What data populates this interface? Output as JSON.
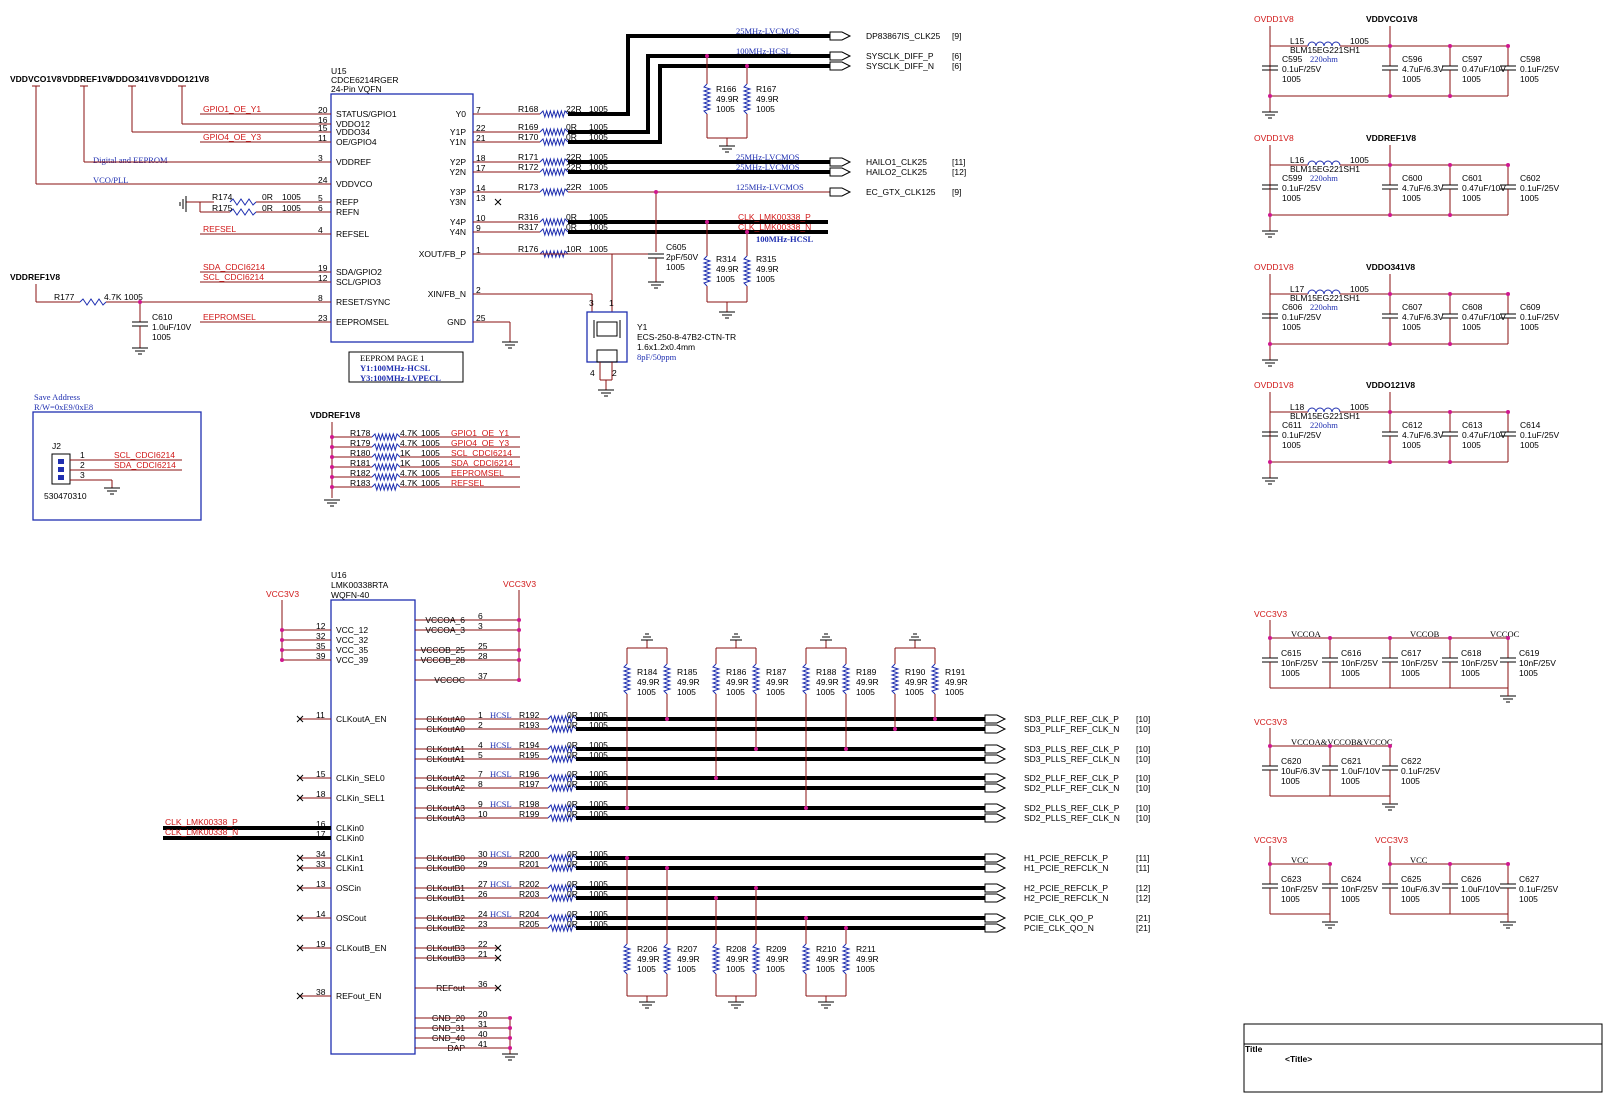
{
  "u15": {
    "ref": "U15",
    "part": "CDCE6214RGER",
    "package": "24-Pin VQFN",
    "left_pins": [
      {
        "num": "20",
        "name": "STATUS/GPIO1",
        "net": "GPIO1_OE_Y1"
      },
      {
        "num": "16",
        "name": "VDDO12",
        "net": ""
      },
      {
        "num": "15",
        "name": "VDDO34",
        "net": ""
      },
      {
        "num": "11",
        "name": "OE/GPIO4",
        "net": "GPIO4_OE_Y3"
      },
      {
        "num": "3",
        "name": "VDDREF",
        "net": "Digital and EEPROM"
      },
      {
        "num": "24",
        "name": "VDDVCO",
        "net": "VCO/PLL"
      },
      {
        "num": "5",
        "name": "REFP",
        "net": ""
      },
      {
        "num": "6",
        "name": "REFN",
        "net": ""
      },
      {
        "num": "4",
        "name": "REFSEL",
        "net": "REFSEL"
      },
      {
        "num": "19",
        "name": "SDA/GPIO2",
        "net": "SDA_CDCI6214"
      },
      {
        "num": "12",
        "name": "SCL/GPIO3",
        "net": "SCL_CDCI6214"
      },
      {
        "num": "8",
        "name": "RESET/SYNC",
        "net": ""
      },
      {
        "num": "23",
        "name": "EEPROMSEL",
        "net": "EEPROMSEL"
      }
    ],
    "right_pins": [
      {
        "num": "7",
        "name": "Y0"
      },
      {
        "num": "22",
        "name": "Y1P"
      },
      {
        "num": "21",
        "name": "Y1N"
      },
      {
        "num": "18",
        "name": "Y2P"
      },
      {
        "num": "17",
        "name": "Y2N"
      },
      {
        "num": "14",
        "name": "Y3P"
      },
      {
        "num": "13",
        "name": "Y3N"
      },
      {
        "num": "10",
        "name": "Y4P"
      },
      {
        "num": "9",
        "name": "Y4N"
      },
      {
        "num": "1",
        "name": "XOUT/FB_P"
      },
      {
        "num": "2",
        "name": "XIN/FB_N"
      },
      {
        "num": "25",
        "name": "GND"
      }
    ],
    "supplies": [
      "VDDVCO1V8",
      "VDDREF1V8",
      "VDDO341V8",
      "VDDO121V8"
    ],
    "ref_resistors": [
      {
        "ref": "R174",
        "val": "0R",
        "pkg": "1005"
      },
      {
        "ref": "R175",
        "val": "0R",
        "pkg": "1005"
      }
    ],
    "out_resistors": [
      {
        "ref": "R168",
        "val": "22R",
        "pkg": "1005"
      },
      {
        "ref": "R169",
        "val": "0R",
        "pkg": "1005"
      },
      {
        "ref": "R170",
        "val": "0R",
        "pkg": "1005"
      },
      {
        "ref": "R171",
        "val": "22R",
        "pkg": "1005"
      },
      {
        "ref": "R172",
        "val": "22R",
        "pkg": "1005"
      },
      {
        "ref": "R173",
        "val": "22R",
        "pkg": "1005"
      },
      {
        "ref": "R316",
        "val": "0R",
        "pkg": "1005"
      },
      {
        "ref": "R317",
        "val": "0R",
        "pkg": "1005"
      },
      {
        "ref": "R176",
        "val": "10R",
        "pkg": "1005"
      }
    ],
    "outputs": [
      {
        "name": "DP83867IS_CLK25",
        "sheet": "[9]",
        "std": "25MHz-LVCMOS"
      },
      {
        "name": "SYSCLK_DIFF_P",
        "sheet": "[6]",
        "std": "100MHz-HCSL"
      },
      {
        "name": "SYSCLK_DIFF_N",
        "sheet": "[6]",
        "std": ""
      },
      {
        "name": "HAILO1_CLK25",
        "sheet": "[11]",
        "std": "25MHz-LVCMOS"
      },
      {
        "name": "HAILO2_CLK25",
        "sheet": "[12]",
        "std": "25MHz-LVCMOS"
      },
      {
        "name": "EC_GTX_CLK125",
        "sheet": "[9]",
        "std": "125MHz-LVCMOS"
      }
    ],
    "lmk_nets": [
      "CLK_LMK00338_P",
      "CLK_LMK00338_N",
      "100MHz-HCSL"
    ],
    "terms": [
      {
        "ref": "R166",
        "val": "49.9R",
        "pkg": "1005"
      },
      {
        "ref": "R167",
        "val": "49.9R",
        "pkg": "1005"
      },
      {
        "ref": "R314",
        "val": "49.9R",
        "pkg": "1005"
      },
      {
        "ref": "R315",
        "val": "49.9R",
        "pkg": "1005"
      }
    ],
    "c605": {
      "ref": "C605",
      "val": "2pF/50V",
      "pkg": "1005"
    },
    "reset": {
      "supply": "VDDREF1V8",
      "r": "R177",
      "rval": "4.7K",
      "rpkg": "1005",
      "c": "C610",
      "cval": "1.0uF/10V",
      "cpkg": "1005"
    },
    "crystal": {
      "ref": "Y1",
      "part": "ECS-250-8-47B2-CTN-TR",
      "size": "1.6x1.2x0.4mm",
      "load": "8pF/50ppm",
      "pins": [
        "3",
        "1",
        "4",
        "2"
      ]
    },
    "eeprom_note": [
      "EEPROM PAGE 1",
      "Y1:100MHz-HCSL",
      "Y3:100MHz-LVPECL"
    ]
  },
  "pullups": {
    "supply": "VDDREF1V8",
    "rows": [
      {
        "ref": "R178",
        "val": "4.7K",
        "pkg": "1005",
        "net": "GPIO1_OE_Y1"
      },
      {
        "ref": "R179",
        "val": "4.7K",
        "pkg": "1005",
        "net": "GPIO4_OE_Y3"
      },
      {
        "ref": "R180",
        "val": "1K",
        "pkg": "1005",
        "net": "SCL_CDCI6214"
      },
      {
        "ref": "R181",
        "val": "1K",
        "pkg": "1005",
        "net": "SDA_CDCI6214"
      },
      {
        "ref": "R182",
        "val": "4.7K",
        "pkg": "1005",
        "net": "EEPROMSEL"
      },
      {
        "ref": "R183",
        "val": "4.7K",
        "pkg": "1005",
        "net": "REFSEL"
      }
    ]
  },
  "j2": {
    "note1": "Save Address",
    "note2": "R/W=0xE9/0xE8",
    "ref": "J2",
    "part": "530470310",
    "pins": [
      {
        "num": "1",
        "net": "SCL_CDCI6214"
      },
      {
        "num": "2",
        "net": "SDA_CDCI6214"
      },
      {
        "num": "3",
        "net": ""
      }
    ]
  },
  "u16": {
    "ref": "U16",
    "part": "LMK00338RTA",
    "package": "WQFN-40",
    "supply": "VCC3V3",
    "vcc_pins": [
      {
        "num": "12",
        "name": "VCC_12"
      },
      {
        "num": "32",
        "name": "VCC_32"
      },
      {
        "num": "35",
        "name": "VCC_35"
      },
      {
        "num": "39",
        "name": "VCC_39"
      }
    ],
    "left_pins": [
      {
        "num": "11",
        "name": "CLKoutA_EN"
      },
      {
        "num": "15",
        "name": "CLKin_SEL0"
      },
      {
        "num": "18",
        "name": "CLKin_SEL1"
      },
      {
        "num": "16",
        "name": "CLKin0"
      },
      {
        "num": "17",
        "name": "CLKin0"
      },
      {
        "num": "34",
        "name": "CLKin1"
      },
      {
        "num": "33",
        "name": "CLKin1"
      },
      {
        "num": "13",
        "name": "OSCin"
      },
      {
        "num": "14",
        "name": "OSCout"
      },
      {
        "num": "19",
        "name": "CLKoutB_EN"
      },
      {
        "num": "38",
        "name": "REFout_EN"
      }
    ],
    "right_supply_pins": [
      {
        "num": "6",
        "name": "VCCOA_6"
      },
      {
        "num": "3",
        "name": "VCCOA_3"
      },
      {
        "num": "25",
        "name": "VCCOB_25"
      },
      {
        "num": "28",
        "name": "VCCOB_28"
      },
      {
        "num": "37",
        "name": "VCCOC"
      }
    ],
    "right_pins": [
      {
        "num": "1",
        "name": "CLKoutA0"
      },
      {
        "num": "2",
        "name": "CLKoutA0"
      },
      {
        "num": "4",
        "name": "CLKoutA1"
      },
      {
        "num": "5",
        "name": "CLKoutA1"
      },
      {
        "num": "7",
        "name": "CLKoutA2"
      },
      {
        "num": "8",
        "name": "CLKoutA2"
      },
      {
        "num": "9",
        "name": "CLKoutA3"
      },
      {
        "num": "10",
        "name": "CLKoutA3"
      },
      {
        "num": "30",
        "name": "CLKoutB0"
      },
      {
        "num": "29",
        "name": "CLKoutB0"
      },
      {
        "num": "27",
        "name": "CLKoutB1"
      },
      {
        "num": "26",
        "name": "CLKoutB1"
      },
      {
        "num": "24",
        "name": "CLKoutB2"
      },
      {
        "num": "23",
        "name": "CLKoutB2"
      },
      {
        "num": "22",
        "name": "CLKoutB3"
      },
      {
        "num": "21",
        "name": "CLKoutB3"
      },
      {
        "num": "36",
        "name": "REFout"
      },
      {
        "num": "20",
        "name": "GND_20"
      },
      {
        "num": "31",
        "name": "GND_31"
      },
      {
        "num": "40",
        "name": "GND_40"
      },
      {
        "num": "41",
        "name": "DAP"
      }
    ],
    "in_nets": [
      "CLK_LMK00338_P",
      "CLK_LMK00338_N"
    ],
    "series": [
      {
        "ref": "R192",
        "val": "0R"
      },
      {
        "ref": "R193",
        "val": "0R"
      },
      {
        "ref": "R194",
        "val": "0R"
      },
      {
        "ref": "R195",
        "val": "0R"
      },
      {
        "ref": "R196",
        "val": "0R"
      },
      {
        "ref": "R197",
        "val": "0R"
      },
      {
        "ref": "R198",
        "val": "0R"
      },
      {
        "ref": "R199",
        "val": "0R"
      },
      {
        "ref": "R200",
        "val": "0R"
      },
      {
        "ref": "R201",
        "val": "0R"
      },
      {
        "ref": "R202",
        "val": "0R"
      },
      {
        "ref": "R203",
        "val": "0R"
      },
      {
        "ref": "R204",
        "val": "0R"
      },
      {
        "ref": "R205",
        "val": "0R"
      }
    ],
    "series_pkg": "1005",
    "hcsl": "HCSL",
    "outputs": [
      {
        "name": "SD3_PLLF_REF_CLK_P",
        "sheet": "[10]"
      },
      {
        "name": "SD3_PLLF_REF_CLK_N",
        "sheet": "[10]"
      },
      {
        "name": "SD3_PLLS_REF_CLK_P",
        "sheet": "[10]"
      },
      {
        "name": "SD3_PLLS_REF_CLK_N",
        "sheet": "[10]"
      },
      {
        "name": "SD2_PLLF_REF_CLK_P",
        "sheet": "[10]"
      },
      {
        "name": "SD2_PLLF_REF_CLK_N",
        "sheet": "[10]"
      },
      {
        "name": "SD2_PLLS_REF_CLK_P",
        "sheet": "[10]"
      },
      {
        "name": "SD2_PLLS_REF_CLK_N",
        "sheet": "[10]"
      },
      {
        "name": "H1_PCIE_REFCLK_P",
        "sheet": "[11]"
      },
      {
        "name": "H1_PCIE_REFCLK_N",
        "sheet": "[11]"
      },
      {
        "name": "H2_PCIE_REFCLK_P",
        "sheet": "[12]"
      },
      {
        "name": "H2_PCIE_REFCLK_N",
        "sheet": "[12]"
      },
      {
        "name": "PCIE_CLK_QO_P",
        "sheet": "[21]"
      },
      {
        "name": "PCIE_CLK_QO_N",
        "sheet": "[21]"
      }
    ],
    "top_terms": [
      "R184",
      "R185",
      "R186",
      "R187",
      "R188",
      "R189",
      "R190",
      "R191"
    ],
    "bot_terms": [
      "R206",
      "R207",
      "R208",
      "R209",
      "R210",
      "R211"
    ],
    "term_val": "49.9R",
    "term_pkg": "1005"
  },
  "filters": [
    {
      "in": "OVDD1V8",
      "out": "VDDVCO1V8",
      "ind": "L15",
      "ind_pkg": "1005",
      "ind_part": "BLM15EG221SH1",
      "ohm": "220ohm",
      "caps": [
        {
          "ref": "C595",
          "val": "0.1uF/25V",
          "pkg": "1005"
        },
        {
          "ref": "C596",
          "val": "4.7uF/6.3V",
          "pkg": "1005"
        },
        {
          "ref": "C597",
          "val": "0.47uF/10V",
          "pkg": "1005"
        },
        {
          "ref": "C598",
          "val": "0.1uF/25V",
          "pkg": "1005"
        }
      ]
    },
    {
      "in": "OVDD1V8",
      "out": "VDDREF1V8",
      "ind": "L16",
      "ind_pkg": "1005",
      "ind_part": "BLM15EG221SH1",
      "ohm": "220ohm",
      "caps": [
        {
          "ref": "C599",
          "val": "0.1uF/25V",
          "pkg": "1005"
        },
        {
          "ref": "C600",
          "val": "4.7uF/6.3V",
          "pkg": "1005"
        },
        {
          "ref": "C601",
          "val": "0.47uF/10V",
          "pkg": "1005"
        },
        {
          "ref": "C602",
          "val": "0.1uF/25V",
          "pkg": "1005"
        }
      ]
    },
    {
      "in": "OVDD1V8",
      "out": "VDDO341V8",
      "ind": "L17",
      "ind_pkg": "1005",
      "ind_part": "BLM15EG221SH1",
      "ohm": "220ohm",
      "caps": [
        {
          "ref": "C606",
          "val": "0.1uF/25V",
          "pkg": "1005"
        },
        {
          "ref": "C607",
          "val": "4.7uF/6.3V",
          "pkg": "1005"
        },
        {
          "ref": "C608",
          "val": "0.47uF/10V",
          "pkg": "1005"
        },
        {
          "ref": "C609",
          "val": "0.1uF/25V",
          "pkg": "1005"
        }
      ]
    },
    {
      "in": "OVDD1V8",
      "out": "VDDO121V8",
      "ind": "L18",
      "ind_pkg": "1005",
      "ind_part": "BLM15EG221SH1",
      "ohm": "220ohm",
      "caps": [
        {
          "ref": "C611",
          "val": "0.1uF/25V",
          "pkg": "1005"
        },
        {
          "ref": "C612",
          "val": "4.7uF/6.3V",
          "pkg": "1005"
        },
        {
          "ref": "C613",
          "val": "0.47uF/10V",
          "pkg": "1005"
        },
        {
          "ref": "C614",
          "val": "0.1uF/25V",
          "pkg": "1005"
        }
      ]
    }
  ],
  "decoup": {
    "supply": "VCC3V3",
    "group1": {
      "labels": [
        "VCCOA",
        "VCCOB",
        "VCCOC"
      ],
      "caps": [
        {
          "ref": "C615",
          "val": "10nF/25V",
          "pkg": "1005"
        },
        {
          "ref": "C616",
          "val": "10nF/25V",
          "pkg": "1005"
        },
        {
          "ref": "C617",
          "val": "10nF/25V",
          "pkg": "1005"
        },
        {
          "ref": "C618",
          "val": "10nF/25V",
          "pkg": "1005"
        },
        {
          "ref": "C619",
          "val": "10nF/25V",
          "pkg": "1005"
        }
      ]
    },
    "group2": {
      "label": "VCCOA&VCCOB&VCCOC",
      "caps": [
        {
          "ref": "C620",
          "val": "10uF/6.3V",
          "pkg": "1005"
        },
        {
          "ref": "C621",
          "val": "1.0uF/10V",
          "pkg": "1005"
        },
        {
          "ref": "C622",
          "val": "0.1uF/25V",
          "pkg": "1005"
        }
      ]
    },
    "group3": {
      "label": "VCC",
      "caps": [
        {
          "ref": "C623",
          "val": "10nF/25V",
          "pkg": "1005"
        },
        {
          "ref": "C624",
          "val": "10nF/25V",
          "pkg": "1005"
        }
      ]
    },
    "group4": {
      "label": "VCC",
      "caps": [
        {
          "ref": "C625",
          "val": "10uF/6.3V",
          "pkg": "1005"
        },
        {
          "ref": "C626",
          "val": "1.0uF/10V",
          "pkg": "1005"
        },
        {
          "ref": "C627",
          "val": "0.1uF/25V",
          "pkg": "1005"
        }
      ]
    }
  },
  "title_block": {
    "label": "Title",
    "value": "<Title>"
  },
  "colors": {
    "wire": "#8a1010",
    "net_red": "#d01818",
    "net_blue": "#1f2fb0",
    "junction": "#d01890",
    "bus": "#000000"
  }
}
